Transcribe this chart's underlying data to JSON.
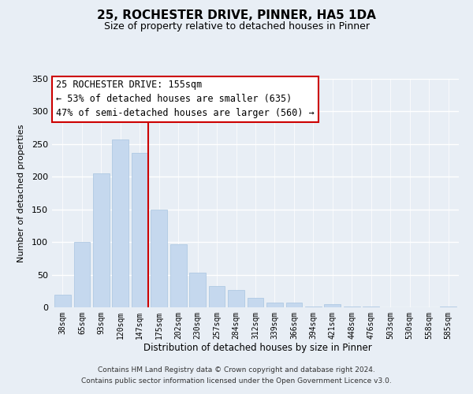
{
  "title1": "25, ROCHESTER DRIVE, PINNER, HA5 1DA",
  "title2": "Size of property relative to detached houses in Pinner",
  "xlabel": "Distribution of detached houses by size in Pinner",
  "ylabel": "Number of detached properties",
  "bar_labels": [
    "38sqm",
    "65sqm",
    "93sqm",
    "120sqm",
    "147sqm",
    "175sqm",
    "202sqm",
    "230sqm",
    "257sqm",
    "284sqm",
    "312sqm",
    "339sqm",
    "366sqm",
    "394sqm",
    "421sqm",
    "448sqm",
    "476sqm",
    "503sqm",
    "530sqm",
    "558sqm",
    "585sqm"
  ],
  "bar_values": [
    19,
    100,
    205,
    257,
    237,
    150,
    96,
    53,
    33,
    26,
    15,
    7,
    7,
    1,
    5,
    1,
    1,
    0,
    0,
    0,
    1
  ],
  "bar_color": "#c5d8ee",
  "bar_edge_color": "#a8c4e0",
  "vline_index": 4,
  "vline_color": "#cc0000",
  "annotation_title": "25 ROCHESTER DRIVE: 155sqm",
  "annotation_line1": "← 53% of detached houses are smaller (635)",
  "annotation_line2": "47% of semi-detached houses are larger (560) →",
  "annotation_box_color": "#ffffff",
  "annotation_box_edge": "#cc0000",
  "ylim": [
    0,
    350
  ],
  "yticks": [
    0,
    50,
    100,
    150,
    200,
    250,
    300,
    350
  ],
  "footer1": "Contains HM Land Registry data © Crown copyright and database right 2024.",
  "footer2": "Contains public sector information licensed under the Open Government Licence v3.0.",
  "bg_color": "#e8eef5",
  "plot_bg_color": "#e8eef5"
}
